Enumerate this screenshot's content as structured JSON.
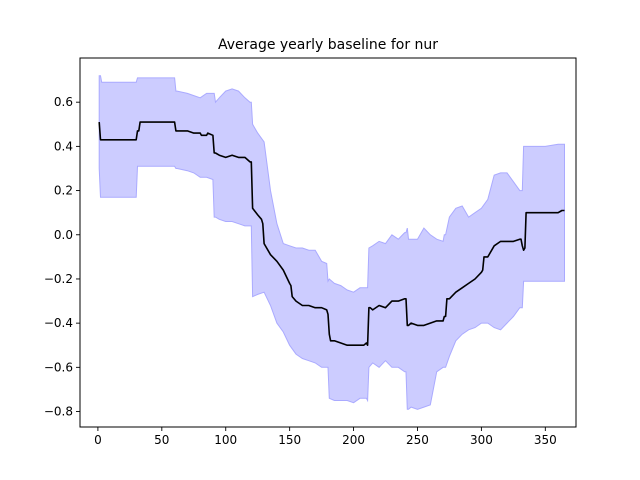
{
  "chart_data": {
    "type": "line",
    "title": "Average yearly baseline for nur",
    "xlabel": "",
    "ylabel": "",
    "xlim": [
      -14,
      374
    ],
    "ylim": [
      -0.87,
      0.8
    ],
    "xticks": [
      0,
      50,
      100,
      150,
      200,
      250,
      300,
      350
    ],
    "yticks": [
      -0.8,
      -0.6,
      -0.4,
      -0.2,
      0.0,
      0.2,
      0.4,
      0.6
    ],
    "ytick_labels": [
      "−0.8",
      "−0.6",
      "−0.4",
      "−0.2",
      "0.0",
      "0.2",
      "0.4",
      "0.6"
    ],
    "grid": false,
    "colors": {
      "line": "#000000",
      "band_fill": "#ccccff",
      "band_edge": "#aaaaff"
    },
    "series": [
      {
        "type": "line",
        "x": [
          1,
          2,
          5,
          10,
          20,
          30,
          31,
          32,
          33,
          40,
          50,
          60,
          61,
          62,
          70,
          75,
          80,
          81,
          85,
          86,
          90,
          91,
          92,
          95,
          100,
          105,
          110,
          115,
          119,
          120,
          121,
          125,
          128,
          129,
          130,
          135,
          140,
          145,
          150,
          151,
          152,
          155,
          160,
          165,
          170,
          175,
          179,
          180,
          181,
          182,
          185,
          190,
          195,
          200,
          205,
          208,
          210,
          211,
          212,
          213,
          215,
          220,
          225,
          230,
          235,
          240,
          241,
          242,
          243,
          245,
          250,
          255,
          260,
          265,
          270,
          271,
          272,
          273,
          275,
          280,
          285,
          290,
          295,
          300,
          301,
          302,
          305,
          310,
          315,
          320,
          325,
          330,
          331,
          332,
          333,
          334,
          335,
          340,
          350,
          360,
          363,
          365
        ],
        "y": [
          0.51,
          0.43,
          0.43,
          0.43,
          0.43,
          0.43,
          0.47,
          0.47,
          0.51,
          0.51,
          0.51,
          0.51,
          0.47,
          0.47,
          0.47,
          0.46,
          0.46,
          0.45,
          0.45,
          0.46,
          0.45,
          0.37,
          0.37,
          0.36,
          0.35,
          0.36,
          0.35,
          0.35,
          0.33,
          0.33,
          0.12,
          0.09,
          0.07,
          0.05,
          -0.04,
          -0.09,
          -0.12,
          -0.16,
          -0.22,
          -0.23,
          -0.28,
          -0.3,
          -0.32,
          -0.32,
          -0.33,
          -0.33,
          -0.34,
          -0.36,
          -0.45,
          -0.48,
          -0.48,
          -0.49,
          -0.5,
          -0.5,
          -0.5,
          -0.5,
          -0.49,
          -0.5,
          -0.33,
          -0.33,
          -0.34,
          -0.32,
          -0.33,
          -0.3,
          -0.3,
          -0.29,
          -0.29,
          -0.41,
          -0.41,
          -0.4,
          -0.41,
          -0.41,
          -0.4,
          -0.39,
          -0.39,
          -0.37,
          -0.37,
          -0.29,
          -0.29,
          -0.26,
          -0.24,
          -0.22,
          -0.2,
          -0.17,
          -0.16,
          -0.1,
          -0.1,
          -0.05,
          -0.03,
          -0.03,
          -0.03,
          -0.02,
          -0.02,
          -0.05,
          -0.07,
          -0.06,
          0.1,
          0.1,
          0.1,
          0.1,
          0.11,
          0.11
        ]
      },
      {
        "type": "band",
        "x": [
          1,
          2,
          3,
          5,
          10,
          20,
          30,
          31,
          32,
          33,
          40,
          50,
          60,
          61,
          62,
          70,
          75,
          80,
          85,
          90,
          91,
          92,
          95,
          100,
          105,
          110,
          115,
          119,
          120,
          121,
          125,
          130,
          135,
          140,
          145,
          150,
          155,
          160,
          165,
          170,
          175,
          179,
          180,
          181,
          185,
          190,
          195,
          200,
          205,
          210,
          211,
          212,
          215,
          220,
          225,
          230,
          235,
          240,
          241,
          242,
          243,
          245,
          250,
          255,
          260,
          265,
          270,
          271,
          272,
          275,
          280,
          285,
          290,
          295,
          300,
          305,
          310,
          315,
          320,
          325,
          330,
          331,
          332,
          333,
          335,
          340,
          350,
          360,
          363,
          365
        ],
        "upper": [
          0.72,
          0.72,
          0.69,
          0.69,
          0.69,
          0.69,
          0.69,
          0.71,
          0.71,
          0.71,
          0.71,
          0.71,
          0.71,
          0.65,
          0.65,
          0.64,
          0.63,
          0.62,
          0.64,
          0.64,
          0.64,
          0.6,
          0.62,
          0.65,
          0.66,
          0.65,
          0.62,
          0.6,
          0.6,
          0.5,
          0.46,
          0.42,
          0.2,
          0.05,
          -0.04,
          -0.05,
          -0.06,
          -0.06,
          -0.07,
          -0.07,
          -0.12,
          -0.13,
          -0.21,
          -0.2,
          -0.22,
          -0.23,
          -0.25,
          -0.26,
          -0.24,
          -0.24,
          -0.24,
          -0.06,
          -0.05,
          -0.03,
          -0.04,
          0.0,
          -0.02,
          0.01,
          0.01,
          0.03,
          -0.02,
          -0.02,
          -0.02,
          0.03,
          0.0,
          -0.02,
          -0.03,
          0.0,
          0.0,
          0.08,
          0.12,
          0.13,
          0.08,
          0.1,
          0.12,
          0.16,
          0.27,
          0.28,
          0.28,
          0.24,
          0.2,
          0.2,
          0.2,
          0.4,
          0.4,
          0.4,
          0.4,
          0.41,
          0.41,
          0.41
        ],
        "lower": [
          0.3,
          0.17,
          0.17,
          0.17,
          0.17,
          0.17,
          0.17,
          0.31,
          0.31,
          0.31,
          0.31,
          0.31,
          0.31,
          0.3,
          0.3,
          0.29,
          0.28,
          0.26,
          0.26,
          0.25,
          0.08,
          0.08,
          0.07,
          0.06,
          0.06,
          0.05,
          0.04,
          0.04,
          0.04,
          -0.28,
          -0.27,
          -0.26,
          -0.32,
          -0.4,
          -0.44,
          -0.5,
          -0.54,
          -0.56,
          -0.57,
          -0.58,
          -0.6,
          -0.6,
          -0.6,
          -0.74,
          -0.75,
          -0.75,
          -0.75,
          -0.76,
          -0.74,
          -0.74,
          -0.75,
          -0.6,
          -0.58,
          -0.6,
          -0.57,
          -0.6,
          -0.6,
          -0.62,
          -0.62,
          -0.79,
          -0.79,
          -0.78,
          -0.79,
          -0.78,
          -0.77,
          -0.62,
          -0.6,
          -0.6,
          -0.6,
          -0.55,
          -0.48,
          -0.45,
          -0.43,
          -0.42,
          -0.4,
          -0.4,
          -0.42,
          -0.43,
          -0.4,
          -0.37,
          -0.33,
          -0.33,
          -0.33,
          -0.21,
          -0.21,
          -0.21,
          -0.21,
          -0.21,
          -0.21,
          -0.21
        ]
      }
    ]
  }
}
